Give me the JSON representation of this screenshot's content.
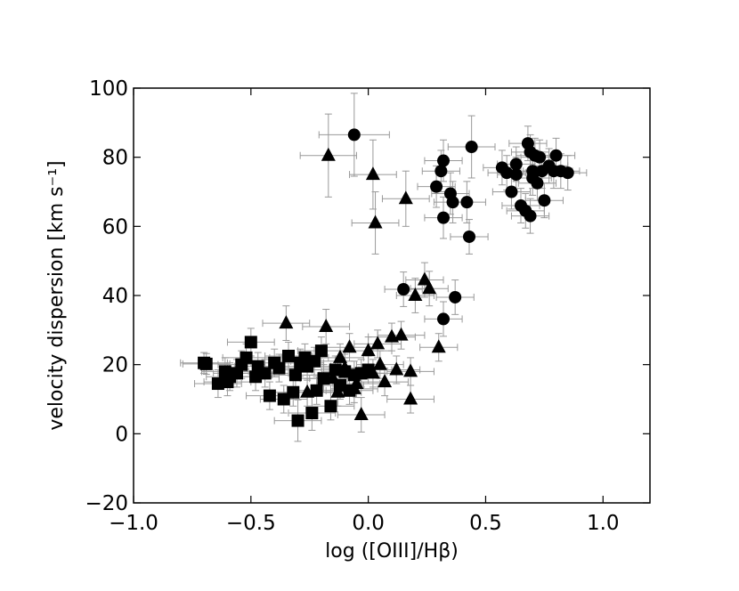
{
  "chart_data": {
    "type": "scatter",
    "title": "",
    "xlabel": "log ([OIII]/Hβ)",
    "ylabel": "velocity dispersion [km s⁻¹]",
    "xlim": [
      -1.0,
      1.2
    ],
    "ylim": [
      -20,
      100
    ],
    "xticks": [
      -1.0,
      -0.5,
      0.0,
      0.5,
      1.0
    ],
    "xtick_labels": [
      "−1.0",
      "−0.5",
      "0.0",
      "0.5",
      "1.0"
    ],
    "yticks": [
      -20,
      0,
      20,
      40,
      60,
      80,
      100
    ],
    "ytick_labels": [
      "−20",
      "0",
      "20",
      "40",
      "60",
      "80",
      "100"
    ],
    "grid": false,
    "errorbar_color": "#999999",
    "marker_color": "#000000",
    "series": [
      {
        "marker": "square",
        "points": [
          {
            "x": -0.7,
            "y": 20.5,
            "xerr": 0.1,
            "yerr": 3
          },
          {
            "x": -0.69,
            "y": 20.2,
            "xerr": 0.1,
            "yerr": 3
          },
          {
            "x": -0.64,
            "y": 14.5,
            "xerr": 0.1,
            "yerr": 4
          },
          {
            "x": -0.61,
            "y": 18,
            "xerr": 0.1,
            "yerr": 4
          },
          {
            "x": -0.6,
            "y": 15,
            "xerr": 0.1,
            "yerr": 4
          },
          {
            "x": -0.59,
            "y": 16.5,
            "xerr": 0.1,
            "yerr": 4
          },
          {
            "x": -0.56,
            "y": 17.5,
            "xerr": 0.1,
            "yerr": 4
          },
          {
            "x": -0.54,
            "y": 20,
            "xerr": 0.1,
            "yerr": 4
          },
          {
            "x": -0.52,
            "y": 22,
            "xerr": 0.1,
            "yerr": 4
          },
          {
            "x": -0.5,
            "y": 26.5,
            "xerr": 0.1,
            "yerr": 4
          },
          {
            "x": -0.48,
            "y": 16.5,
            "xerr": 0.1,
            "yerr": 4
          },
          {
            "x": -0.47,
            "y": 19.5,
            "xerr": 0.1,
            "yerr": 4
          },
          {
            "x": -0.44,
            "y": 17.5,
            "xerr": 0.1,
            "yerr": 4
          },
          {
            "x": -0.42,
            "y": 11,
            "xerr": 0.1,
            "yerr": 4
          },
          {
            "x": -0.4,
            "y": 20.5,
            "xerr": 0.1,
            "yerr": 4
          },
          {
            "x": -0.38,
            "y": 19,
            "xerr": 0.1,
            "yerr": 4
          },
          {
            "x": -0.36,
            "y": 10,
            "xerr": 0.1,
            "yerr": 4
          },
          {
            "x": -0.34,
            "y": 22.5,
            "xerr": 0.1,
            "yerr": 4
          },
          {
            "x": -0.32,
            "y": 12,
            "xerr": 0.1,
            "yerr": 4
          },
          {
            "x": -0.31,
            "y": 17,
            "xerr": 0.1,
            "yerr": 4
          },
          {
            "x": -0.3,
            "y": 3.8,
            "xerr": 0.1,
            "yerr": 6
          },
          {
            "x": -0.29,
            "y": 20.5,
            "xerr": 0.1,
            "yerr": 4
          },
          {
            "x": -0.27,
            "y": 22,
            "xerr": 0.1,
            "yerr": 4
          },
          {
            "x": -0.26,
            "y": 19.5,
            "xerr": 0.1,
            "yerr": 4
          },
          {
            "x": -0.24,
            "y": 6,
            "xerr": 0.1,
            "yerr": 5
          },
          {
            "x": -0.23,
            "y": 21,
            "xerr": 0.1,
            "yerr": 4
          },
          {
            "x": -0.22,
            "y": 12.5,
            "xerr": 0.1,
            "yerr": 4
          },
          {
            "x": -0.2,
            "y": 24,
            "xerr": 0.1,
            "yerr": 4
          },
          {
            "x": -0.19,
            "y": 16,
            "xerr": 0.1,
            "yerr": 4
          },
          {
            "x": -0.16,
            "y": 8,
            "xerr": 0.1,
            "yerr": 4
          },
          {
            "x": -0.14,
            "y": 18.5,
            "xerr": 0.1,
            "yerr": 4
          },
          {
            "x": -0.12,
            "y": 14,
            "xerr": 0.1,
            "yerr": 4
          },
          {
            "x": -0.1,
            "y": 18,
            "xerr": 0.1,
            "yerr": 4
          },
          {
            "x": -0.08,
            "y": 12.5,
            "xerr": 0.1,
            "yerr": 4
          },
          {
            "x": -0.06,
            "y": 17,
            "xerr": 0.1,
            "yerr": 4
          },
          {
            "x": -0.03,
            "y": 17.5,
            "xerr": 0.1,
            "yerr": 4
          },
          {
            "x": 0.0,
            "y": 18.5,
            "xerr": 0.1,
            "yerr": 4
          }
        ]
      },
      {
        "marker": "triangle",
        "points": [
          {
            "x": -0.17,
            "y": 80.5,
            "xerr": 0.12,
            "yerr": 12
          },
          {
            "x": 0.02,
            "y": 75,
            "xerr": 0.1,
            "yerr": 10
          },
          {
            "x": 0.03,
            "y": 61,
            "xerr": 0.1,
            "yerr": 9
          },
          {
            "x": 0.16,
            "y": 68,
            "xerr": 0.1,
            "yerr": 8
          },
          {
            "x": 0.2,
            "y": 40,
            "xerr": 0.08,
            "yerr": 5
          },
          {
            "x": 0.24,
            "y": 44.5,
            "xerr": 0.08,
            "yerr": 5
          },
          {
            "x": 0.26,
            "y": 42,
            "xerr": 0.08,
            "yerr": 5
          },
          {
            "x": 0.3,
            "y": 25,
            "xerr": 0.08,
            "yerr": 4
          },
          {
            "x": -0.35,
            "y": 32,
            "xerr": 0.1,
            "yerr": 5
          },
          {
            "x": -0.18,
            "y": 31,
            "xerr": 0.1,
            "yerr": 5
          },
          {
            "x": -0.15,
            "y": 16,
            "xerr": 0.1,
            "yerr": 4
          },
          {
            "x": -0.13,
            "y": 12,
            "xerr": 0.1,
            "yerr": 4
          },
          {
            "x": -0.12,
            "y": 22,
            "xerr": 0.1,
            "yerr": 4
          },
          {
            "x": -0.1,
            "y": 19,
            "xerr": 0.1,
            "yerr": 4
          },
          {
            "x": -0.08,
            "y": 25,
            "xerr": 0.1,
            "yerr": 4
          },
          {
            "x": -0.06,
            "y": 13,
            "xerr": 0.1,
            "yerr": 4
          },
          {
            "x": -0.05,
            "y": 14.5,
            "xerr": 0.1,
            "yerr": 4
          },
          {
            "x": -0.03,
            "y": 5.5,
            "xerr": 0.1,
            "yerr": 5
          },
          {
            "x": 0.0,
            "y": 24,
            "xerr": 0.1,
            "yerr": 4
          },
          {
            "x": 0.02,
            "y": 17.5,
            "xerr": 0.1,
            "yerr": 4
          },
          {
            "x": 0.04,
            "y": 26,
            "xerr": 0.1,
            "yerr": 4
          },
          {
            "x": 0.05,
            "y": 20,
            "xerr": 0.1,
            "yerr": 4
          },
          {
            "x": 0.07,
            "y": 15,
            "xerr": 0.1,
            "yerr": 4
          },
          {
            "x": 0.1,
            "y": 28,
            "xerr": 0.1,
            "yerr": 4
          },
          {
            "x": 0.12,
            "y": 18.5,
            "xerr": 0.1,
            "yerr": 4
          },
          {
            "x": 0.14,
            "y": 28.5,
            "xerr": 0.1,
            "yerr": 4
          },
          {
            "x": 0.18,
            "y": 18,
            "xerr": 0.1,
            "yerr": 4
          },
          {
            "x": 0.18,
            "y": 10,
            "xerr": 0.1,
            "yerr": 4
          },
          {
            "x": -0.26,
            "y": 12,
            "xerr": 0.1,
            "yerr": 4
          }
        ]
      },
      {
        "marker": "circle",
        "points": [
          {
            "x": -0.06,
            "y": 86.5,
            "xerr": 0.15,
            "yerr": 12
          },
          {
            "x": 0.44,
            "y": 83,
            "xerr": 0.1,
            "yerr": 9
          },
          {
            "x": 0.32,
            "y": 79,
            "xerr": 0.08,
            "yerr": 6
          },
          {
            "x": 0.31,
            "y": 76,
            "xerr": 0.08,
            "yerr": 6
          },
          {
            "x": 0.29,
            "y": 71.5,
            "xerr": 0.08,
            "yerr": 6
          },
          {
            "x": 0.35,
            "y": 69.5,
            "xerr": 0.08,
            "yerr": 6
          },
          {
            "x": 0.36,
            "y": 67,
            "xerr": 0.08,
            "yerr": 6
          },
          {
            "x": 0.42,
            "y": 67,
            "xerr": 0.08,
            "yerr": 6
          },
          {
            "x": 0.32,
            "y": 62.5,
            "xerr": 0.08,
            "yerr": 6
          },
          {
            "x": 0.43,
            "y": 57,
            "xerr": 0.08,
            "yerr": 5
          },
          {
            "x": 0.15,
            "y": 41.8,
            "xerr": 0.08,
            "yerr": 5
          },
          {
            "x": 0.37,
            "y": 39.5,
            "xerr": 0.08,
            "yerr": 5
          },
          {
            "x": 0.32,
            "y": 33.2,
            "xerr": 0.08,
            "yerr": 5
          },
          {
            "x": 0.57,
            "y": 77,
            "xerr": 0.08,
            "yerr": 5
          },
          {
            "x": 0.59,
            "y": 75.5,
            "xerr": 0.08,
            "yerr": 5
          },
          {
            "x": 0.61,
            "y": 70,
            "xerr": 0.08,
            "yerr": 5
          },
          {
            "x": 0.63,
            "y": 78,
            "xerr": 0.08,
            "yerr": 5
          },
          {
            "x": 0.63,
            "y": 75,
            "xerr": 0.08,
            "yerr": 5
          },
          {
            "x": 0.65,
            "y": 66,
            "xerr": 0.08,
            "yerr": 5
          },
          {
            "x": 0.67,
            "y": 64.5,
            "xerr": 0.08,
            "yerr": 5
          },
          {
            "x": 0.69,
            "y": 63,
            "xerr": 0.08,
            "yerr": 5
          },
          {
            "x": 0.68,
            "y": 84,
            "xerr": 0.08,
            "yerr": 5
          },
          {
            "x": 0.69,
            "y": 81.5,
            "xerr": 0.08,
            "yerr": 5
          },
          {
            "x": 0.7,
            "y": 76,
            "xerr": 0.08,
            "yerr": 5
          },
          {
            "x": 0.7,
            "y": 74,
            "xerr": 0.08,
            "yerr": 5
          },
          {
            "x": 0.71,
            "y": 80.5,
            "xerr": 0.08,
            "yerr": 5
          },
          {
            "x": 0.72,
            "y": 72.5,
            "xerr": 0.08,
            "yerr": 5
          },
          {
            "x": 0.73,
            "y": 80,
            "xerr": 0.08,
            "yerr": 5
          },
          {
            "x": 0.74,
            "y": 76,
            "xerr": 0.08,
            "yerr": 5
          },
          {
            "x": 0.75,
            "y": 67.5,
            "xerr": 0.08,
            "yerr": 5
          },
          {
            "x": 0.77,
            "y": 77.5,
            "xerr": 0.08,
            "yerr": 5
          },
          {
            "x": 0.79,
            "y": 76,
            "xerr": 0.08,
            "yerr": 5
          },
          {
            "x": 0.8,
            "y": 80.5,
            "xerr": 0.08,
            "yerr": 5
          },
          {
            "x": 0.82,
            "y": 76,
            "xerr": 0.08,
            "yerr": 5
          },
          {
            "x": 0.85,
            "y": 75.5,
            "xerr": 0.08,
            "yerr": 5
          }
        ]
      }
    ]
  }
}
